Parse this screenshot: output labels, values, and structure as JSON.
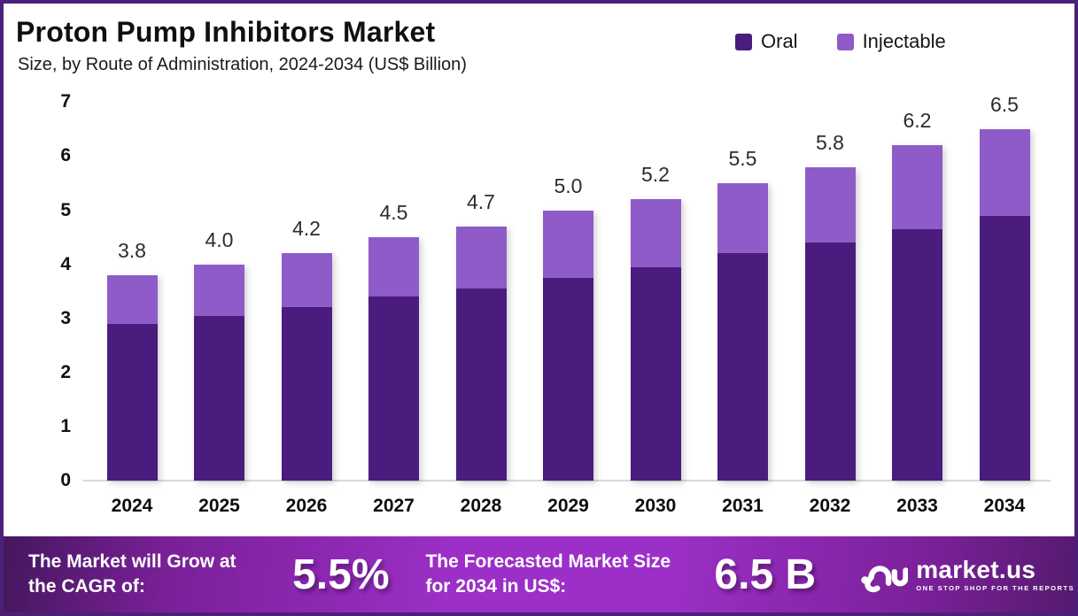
{
  "header": {
    "title": "Proton Pump Inhibitors Market",
    "subtitle": "Size, by Route of Administration, 2024-2034 (US$ Billion)"
  },
  "legend": [
    {
      "label": "Oral",
      "color": "#4A1C7E"
    },
    {
      "label": "Injectable",
      "color": "#8E5BC8"
    }
  ],
  "chart_data": {
    "type": "bar",
    "stacked": true,
    "title": "Proton Pump Inhibitors Market Size, by Route of Administration, 2024-2034 (US$ Billion)",
    "categories": [
      "2024",
      "2025",
      "2026",
      "2027",
      "2028",
      "2029",
      "2030",
      "2031",
      "2032",
      "2033",
      "2034"
    ],
    "series": [
      {
        "name": "Oral",
        "color": "#4A1C7E",
        "values": [
          2.9,
          3.05,
          3.2,
          3.4,
          3.55,
          3.75,
          3.95,
          4.2,
          4.4,
          4.65,
          4.9
        ]
      },
      {
        "name": "Injectable",
        "color": "#8E5BC8",
        "values": [
          0.9,
          0.95,
          1.0,
          1.1,
          1.15,
          1.25,
          1.25,
          1.3,
          1.4,
          1.55,
          1.6
        ]
      }
    ],
    "total_labels": [
      "3.8",
      "4.0",
      "4.2",
      "4.5",
      "4.7",
      "5.0",
      "5.2",
      "5.5",
      "5.8",
      "6.2",
      "6.5"
    ],
    "xlabel": "",
    "ylabel": "",
    "ylim": [
      0,
      7
    ],
    "yticks": [
      0,
      1,
      2,
      3,
      4,
      5,
      6,
      7
    ],
    "grid": false,
    "legend_position": "top-right"
  },
  "banner": {
    "cagr_label": "The Market will Grow at the CAGR of:",
    "cagr_value": "5.5%",
    "forecast_label": "The Forecasted Market Size for 2034 in US$:",
    "forecast_value": "6.5 B",
    "logo_name": "market.us",
    "logo_tagline": "ONE STOP SHOP FOR THE REPORTS"
  },
  "colors": {
    "oral": "#4A1C7E",
    "injectable": "#8E5BC8",
    "frame_border": "#4B2178",
    "banner_gradient_mid": "#9C2FC7",
    "banner_gradient_edge": "#45175E"
  }
}
